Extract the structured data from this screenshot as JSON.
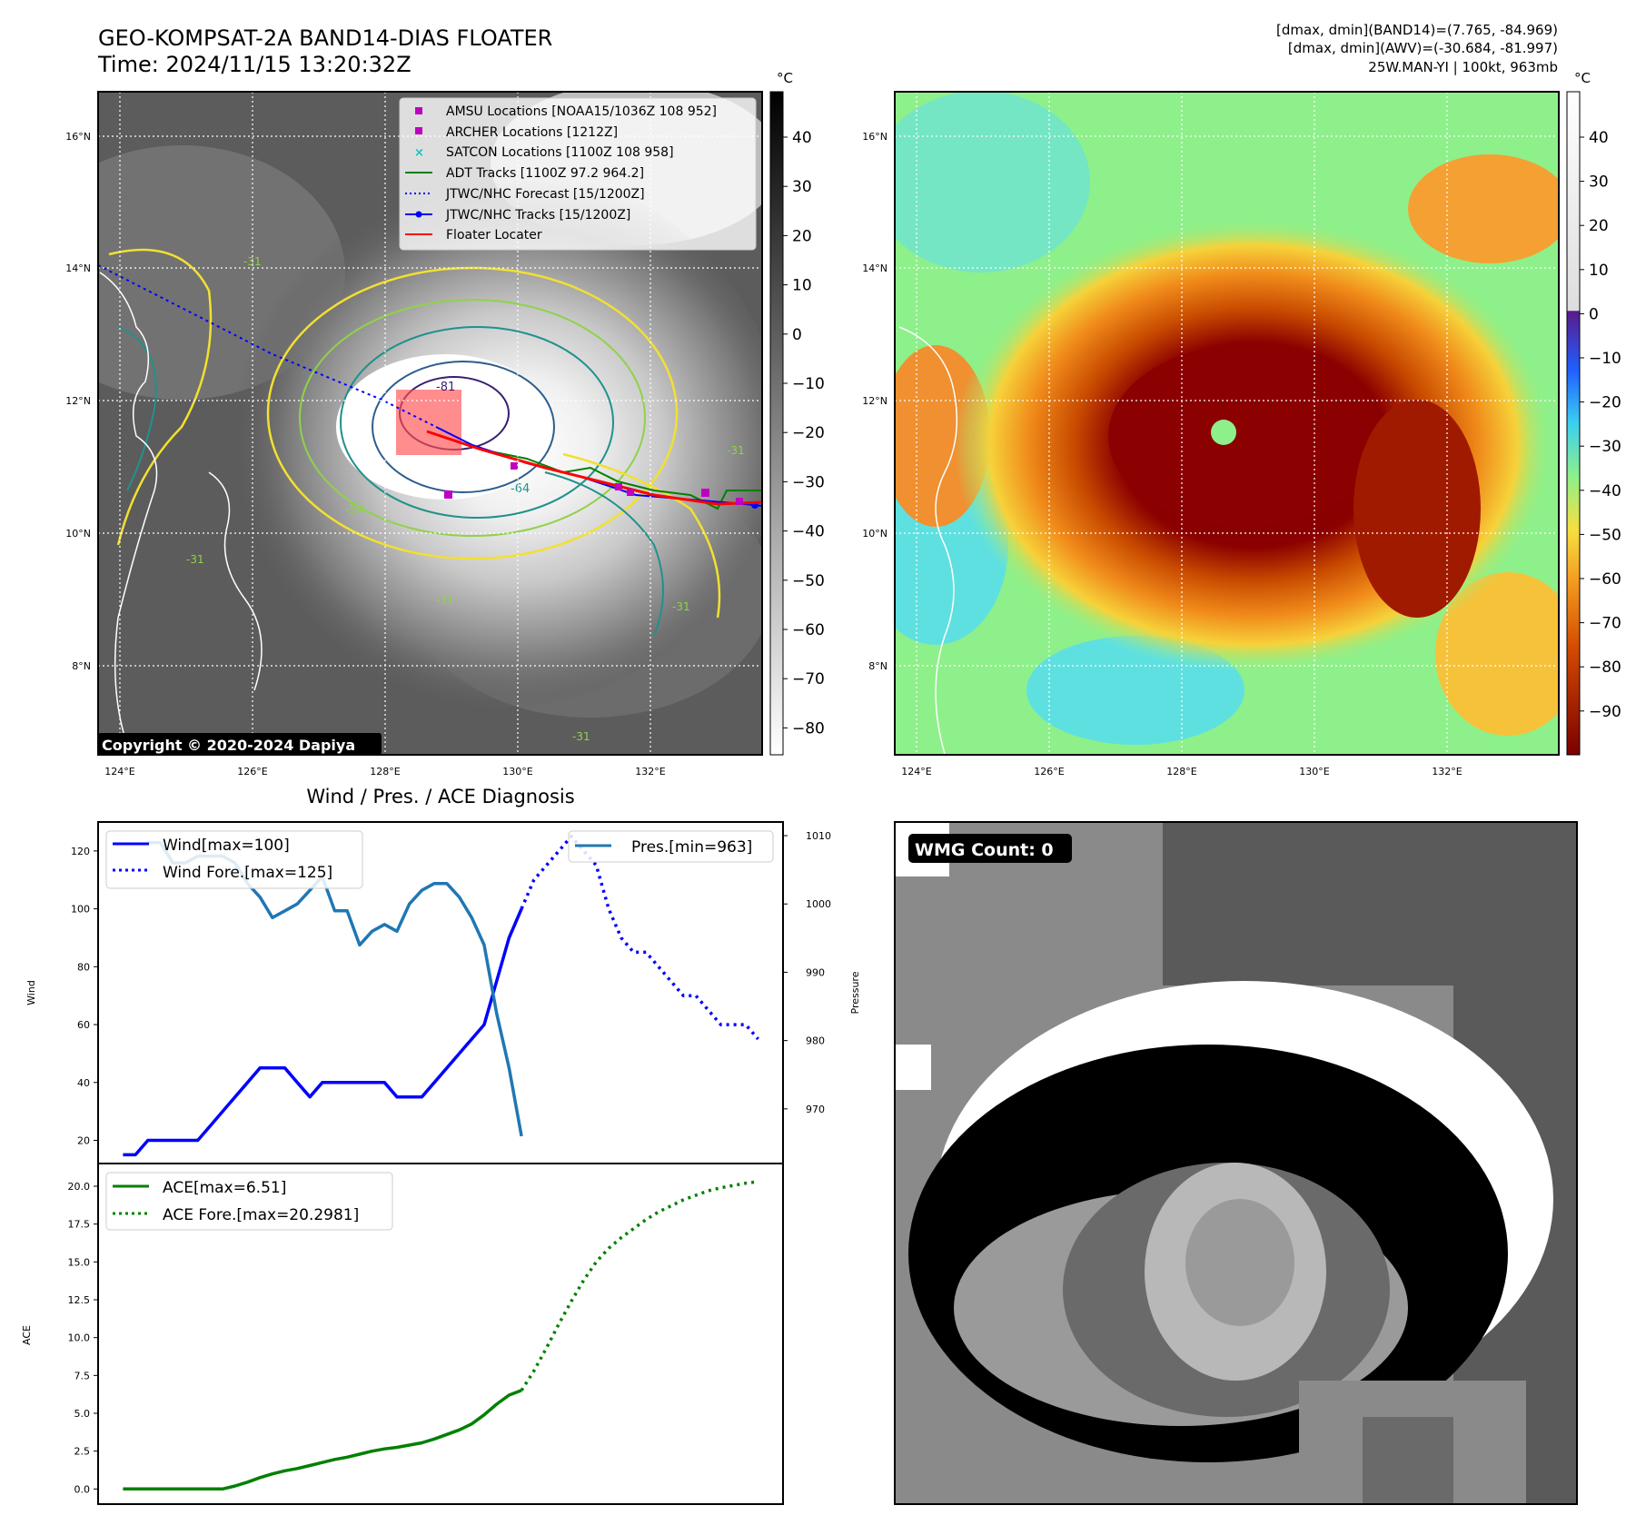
{
  "header": {
    "title_line1": "GEO-KOMPSAT-2A BAND14-DIAS FLOATER",
    "title_line2": "Time: 2024/11/15 13:20:32Z",
    "stats_line1": "[dmax, dmin](BAND14)=(7.765, -84.969)",
    "stats_line2": "[dmax, dmin](AWV)=(-30.684, -81.997)",
    "stats_line3": "25W.MAN-YI | 100kt, 963mb"
  },
  "ir_map": {
    "copyright": "Copyright © 2020-2024 Dapiya",
    "lon_labels": [
      "124°E",
      "126°E",
      "128°E",
      "130°E",
      "132°E"
    ],
    "lat_labels": [
      "16°N",
      "14°N",
      "12°N",
      "10°N",
      "8°N"
    ],
    "legend": [
      {
        "label": "AMSU Locations [NOAA15/1036Z 108 952]",
        "color": "#c000c0",
        "kind": "square"
      },
      {
        "label": "ARCHER Locations [1212Z]",
        "color": "#c000c0",
        "kind": "square"
      },
      {
        "label": "SATCON Locations [1100Z 108 958]",
        "color": "#17bfbf",
        "kind": "x"
      },
      {
        "label": "ADT Tracks [1100Z 97.2 964.2]",
        "color": "#008000",
        "kind": "line"
      },
      {
        "label": "JTWC/NHC Forecast [15/1200Z]",
        "color": "#0000ff",
        "kind": "dotted"
      },
      {
        "label": "JTWC/NHC Tracks [15/1200Z]",
        "color": "#0000ff",
        "kind": "line-dot"
      },
      {
        "label": "Floater Locater",
        "color": "#ff0000",
        "kind": "line"
      }
    ],
    "contour_labels": [
      "-81",
      "-64",
      "-54",
      "-31",
      "-31",
      "-31",
      "-31",
      "-31",
      "-31"
    ],
    "colorbar": {
      "unit": "°C",
      "ticks": [
        "40",
        "30",
        "20",
        "10",
        "0",
        "−10",
        "−20",
        "−30",
        "−40",
        "−50",
        "−60",
        "−70",
        "−80"
      ]
    }
  },
  "awv_map": {
    "lon_labels": [
      "124°E",
      "126°E",
      "128°E",
      "130°E",
      "132°E"
    ],
    "lat_labels": [
      "16°N",
      "14°N",
      "12°N",
      "10°N",
      "8°N"
    ],
    "colorbar": {
      "unit": "°C",
      "ticks": [
        "40",
        "30",
        "20",
        "10",
        "0",
        "−10",
        "−20",
        "−30",
        "−40",
        "−50",
        "−60",
        "−70",
        "−80",
        "−90"
      ]
    }
  },
  "diag_title": "Wind / Pres. / ACE Diagnosis",
  "wmg": {
    "label": "WMG Count: 0"
  },
  "chart_data": [
    {
      "type": "line",
      "title": "Wind / Pres. / ACE Diagnosis",
      "ylabel": "Wind",
      "ylabel_right": "Pressure",
      "ylim": [
        12,
        130
      ],
      "ylim_right": [
        962,
        1012
      ],
      "yticks": [
        20,
        40,
        60,
        80,
        100,
        120
      ],
      "yticks_right": [
        970,
        980,
        990,
        1000,
        1010
      ],
      "series": [
        {
          "name": "Wind[max=100]",
          "style": "solid",
          "color": "#0000ff",
          "axis": "left",
          "x": [
            0,
            1,
            2,
            3,
            4,
            5,
            6,
            7,
            8,
            9,
            10,
            11,
            12,
            13,
            14,
            15,
            16,
            17,
            18,
            19,
            20,
            21,
            22,
            23,
            24,
            25,
            26,
            27
          ],
          "values": [
            15,
            15,
            20,
            20,
            20,
            20,
            20,
            25,
            30,
            35,
            40,
            45,
            45,
            45,
            40,
            35,
            40,
            40,
            40,
            40,
            40,
            40,
            35,
            35,
            35,
            40,
            45,
            50
          ]
        },
        {
          "name": "Wind[max=100] (cont.)",
          "style": "solid",
          "color": "#0000ff",
          "axis": "left",
          "x": [
            27,
            28,
            29,
            30,
            31,
            32
          ],
          "values": [
            50,
            55,
            60,
            75,
            90,
            100
          ]
        },
        {
          "name": "Wind Fore.[max=125]",
          "style": "dotted",
          "color": "#0000ff",
          "axis": "left",
          "x": [
            32,
            33,
            34,
            35,
            36,
            37,
            38,
            39,
            40,
            41,
            42,
            43,
            44,
            45,
            46,
            47,
            48,
            49,
            50,
            51
          ],
          "values": [
            100,
            110,
            115,
            120,
            125,
            120,
            115,
            100,
            90,
            85,
            85,
            80,
            75,
            70,
            70,
            65,
            60,
            60,
            60,
            55
          ]
        },
        {
          "name": "Pres.[min=963]",
          "style": "solid",
          "color": "#1f77b4",
          "axis": "right",
          "x": [
            2,
            3,
            4,
            5,
            6,
            7,
            8,
            9,
            10,
            11,
            12,
            13,
            14,
            15,
            16,
            17,
            18,
            19,
            20,
            21,
            22,
            23,
            24,
            25,
            26,
            27,
            28,
            29,
            30,
            31,
            32
          ],
          "values": [
            1009,
            1009,
            1006,
            1006,
            1007,
            1007,
            1007,
            1006,
            1003,
            1001,
            998,
            999,
            1000,
            1002,
            1004,
            999,
            999,
            994,
            996,
            997,
            996,
            1000,
            1002,
            1003,
            1003,
            1001,
            998,
            994,
            984,
            976,
            966
          ]
        }
      ]
    },
    {
      "type": "line",
      "ylabel": "ACE",
      "ylim": [
        -1,
        21.5
      ],
      "yticks": [
        0.0,
        2.5,
        5.0,
        7.5,
        10.0,
        12.5,
        15.0,
        17.5,
        20.0
      ],
      "series": [
        {
          "name": "ACE[max=6.51]",
          "style": "solid",
          "color": "#008000",
          "x": [
            0,
            1,
            2,
            3,
            4,
            5,
            6,
            7,
            8,
            9,
            10,
            11,
            12,
            13,
            14,
            15,
            16,
            17,
            18,
            19,
            20,
            21,
            22,
            23,
            24,
            25,
            26,
            27,
            28,
            29,
            30,
            31,
            32
          ],
          "values": [
            0.0,
            0.0,
            0.0,
            0.0,
            0.0,
            0.0,
            0.0,
            0.0,
            0.0,
            0.2,
            0.45,
            0.75,
            1.0,
            1.2,
            1.35,
            1.55,
            1.75,
            1.95,
            2.1,
            2.3,
            2.5,
            2.65,
            2.75,
            2.9,
            3.05,
            3.3,
            3.6,
            3.9,
            4.3,
            4.9,
            5.6,
            6.2,
            6.51
          ]
        },
        {
          "name": "ACE Fore.[max=20.2981]",
          "style": "dotted",
          "color": "#008000",
          "x": [
            32,
            33,
            34,
            35,
            36,
            37,
            38,
            39,
            40,
            41,
            42,
            43,
            44,
            45,
            46,
            47,
            48,
            49,
            50,
            51
          ],
          "values": [
            6.51,
            7.8,
            9.3,
            10.9,
            12.4,
            13.8,
            15.0,
            15.9,
            16.6,
            17.2,
            17.8,
            18.3,
            18.7,
            19.1,
            19.4,
            19.7,
            19.9,
            20.05,
            20.2,
            20.3
          ]
        }
      ]
    }
  ]
}
